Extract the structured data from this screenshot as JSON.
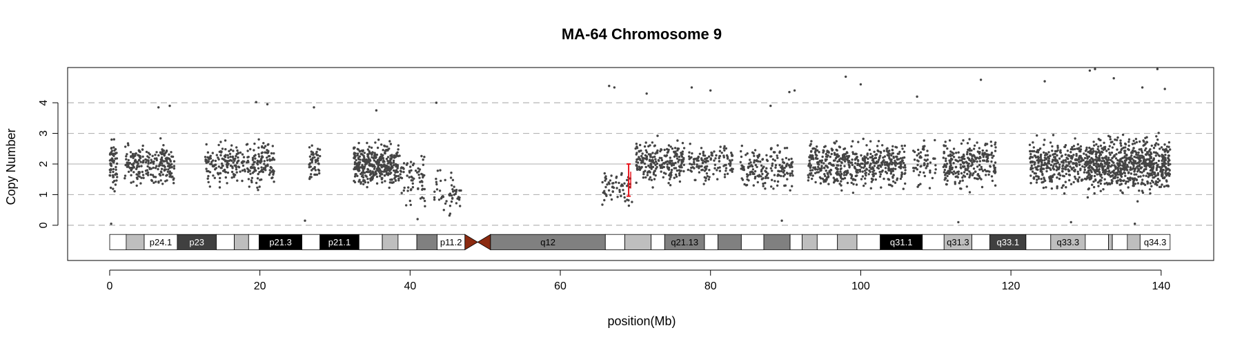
{
  "chart_data": {
    "type": "scatter",
    "title": "MA-64  Chromosome 9",
    "xlabel": "position(Mb)",
    "ylabel": "Copy Number",
    "xlim": [
      -5.6,
      147
    ],
    "ylim": [
      -1.15,
      5.15
    ],
    "x_ticks": [
      0,
      20,
      40,
      60,
      80,
      100,
      120,
      140
    ],
    "y_ticks": [
      0,
      1,
      2,
      3,
      4
    ],
    "gridlines_y": [
      0,
      1,
      2,
      3,
      4
    ],
    "baseline_y": 2,
    "point_color": "#444444",
    "marker": {
      "x": 69.1,
      "y_low": 0.95,
      "y_high": 2.0,
      "color": "#e8141c"
    },
    "point_clusters": [
      {
        "x_start": 0.0,
        "x_end": 1.0,
        "y_center": 2.0,
        "y_spread": 0.7,
        "density": 60
      },
      {
        "x_start": 2.0,
        "x_end": 3.5,
        "y_center": 2.1,
        "y_spread": 0.5,
        "density": 50
      },
      {
        "x_start": 3.5,
        "x_end": 8.6,
        "y_center": 2.0,
        "y_spread": 0.6,
        "density": 180
      },
      {
        "x_start": 12.7,
        "x_end": 18.5,
        "y_center": 2.0,
        "y_spread": 0.6,
        "density": 160
      },
      {
        "x_start": 18.5,
        "x_end": 22.0,
        "y_center": 2.0,
        "y_spread": 0.7,
        "density": 120
      },
      {
        "x_start": 26.5,
        "x_end": 28.0,
        "y_center": 2.0,
        "y_spread": 0.6,
        "density": 50
      },
      {
        "x_start": 32.5,
        "x_end": 38.5,
        "y_center": 2.0,
        "y_spread": 0.6,
        "density": 380
      },
      {
        "x_start": 38.5,
        "x_end": 42.0,
        "y_center": 1.5,
        "y_spread": 0.8,
        "density": 70
      },
      {
        "x_start": 43.0,
        "x_end": 46.8,
        "y_center": 1.1,
        "y_spread": 0.6,
        "density": 50
      },
      {
        "x_start": 65.5,
        "x_end": 69.6,
        "y_center": 1.2,
        "y_spread": 0.5,
        "density": 60
      },
      {
        "x_start": 70.0,
        "x_end": 76.5,
        "y_center": 2.1,
        "y_spread": 0.6,
        "density": 230
      },
      {
        "x_start": 77.0,
        "x_end": 83.0,
        "y_center": 2.0,
        "y_spread": 0.6,
        "density": 130
      },
      {
        "x_start": 84.0,
        "x_end": 91.0,
        "y_center": 1.9,
        "y_spread": 0.7,
        "density": 170
      },
      {
        "x_start": 93.0,
        "x_end": 106.0,
        "y_center": 2.0,
        "y_spread": 0.7,
        "density": 520
      },
      {
        "x_start": 107.0,
        "x_end": 110.0,
        "y_center": 2.0,
        "y_spread": 0.7,
        "density": 60
      },
      {
        "x_start": 111.0,
        "x_end": 118.0,
        "y_center": 2.0,
        "y_spread": 0.7,
        "density": 260
      },
      {
        "x_start": 122.5,
        "x_end": 130.0,
        "y_center": 2.0,
        "y_spread": 0.7,
        "density": 330
      },
      {
        "x_start": 130.0,
        "x_end": 141.2,
        "y_center": 2.0,
        "y_spread": 0.8,
        "density": 760
      }
    ],
    "outlier_points": [
      [
        0.2,
        0.05
      ],
      [
        8.0,
        3.9
      ],
      [
        6.5,
        3.85
      ],
      [
        19.5,
        4.02
      ],
      [
        21.0,
        3.95
      ],
      [
        27.2,
        3.85
      ],
      [
        26.0,
        0.15
      ],
      [
        35.5,
        3.75
      ],
      [
        43.5,
        4.0
      ],
      [
        41.0,
        0.2
      ],
      [
        44.5,
        0.5
      ],
      [
        66.5,
        4.55
      ],
      [
        67.2,
        4.5
      ],
      [
        71.5,
        4.3
      ],
      [
        77.5,
        4.5
      ],
      [
        80.0,
        4.4
      ],
      [
        88.0,
        3.9
      ],
      [
        89.5,
        0.15
      ],
      [
        90.5,
        4.35
      ],
      [
        91.2,
        4.4
      ],
      [
        98.0,
        4.85
      ],
      [
        100.0,
        4.6
      ],
      [
        107.5,
        4.2
      ],
      [
        116.0,
        4.75
      ],
      [
        124.5,
        4.7
      ],
      [
        130.5,
        5.05
      ],
      [
        131.2,
        5.1
      ],
      [
        133.7,
        4.8
      ],
      [
        137.5,
        4.5
      ],
      [
        139.5,
        5.1
      ],
      [
        140.5,
        4.45
      ],
      [
        136.5,
        0.05
      ],
      [
        128.0,
        0.1
      ],
      [
        113.0,
        0.1
      ]
    ],
    "ideogram": {
      "y": -0.55,
      "height": 0.5,
      "centromere": {
        "start": 47.3,
        "mid": 49.0,
        "end": 50.7,
        "color": "#8b2a10"
      },
      "bands": [
        {
          "start": 0.0,
          "end": 2.2,
          "label": "",
          "stain": "#ffffff"
        },
        {
          "start": 2.2,
          "end": 4.6,
          "label": "",
          "stain": "#bebebe"
        },
        {
          "start": 4.6,
          "end": 9.0,
          "label": "p24.1",
          "stain": "#ffffff"
        },
        {
          "start": 9.0,
          "end": 14.2,
          "label": "p23",
          "stain": "#404040"
        },
        {
          "start": 14.2,
          "end": 16.6,
          "label": "",
          "stain": "#ffffff"
        },
        {
          "start": 16.6,
          "end": 18.5,
          "label": "",
          "stain": "#bebebe"
        },
        {
          "start": 18.5,
          "end": 19.9,
          "label": "",
          "stain": "#ffffff"
        },
        {
          "start": 19.9,
          "end": 25.6,
          "label": "p21.3",
          "stain": "#000000"
        },
        {
          "start": 25.6,
          "end": 28.0,
          "label": "",
          "stain": "#ffffff"
        },
        {
          "start": 28.0,
          "end": 33.2,
          "label": "p21.1",
          "stain": "#000000"
        },
        {
          "start": 33.2,
          "end": 36.3,
          "label": "",
          "stain": "#ffffff"
        },
        {
          "start": 36.3,
          "end": 38.4,
          "label": "",
          "stain": "#bebebe"
        },
        {
          "start": 38.4,
          "end": 40.9,
          "label": "",
          "stain": "#ffffff"
        },
        {
          "start": 40.9,
          "end": 43.6,
          "label": "",
          "stain": "#808080"
        },
        {
          "start": 43.6,
          "end": 47.3,
          "label": "p11.2",
          "stain": "#ffffff"
        },
        {
          "start": 50.7,
          "end": 66.0,
          "label": "q12",
          "stain": "#808080"
        },
        {
          "start": 66.0,
          "end": 68.6,
          "label": "",
          "stain": "#ffffff"
        },
        {
          "start": 68.6,
          "end": 72.1,
          "label": "",
          "stain": "#bebebe"
        },
        {
          "start": 72.1,
          "end": 73.9,
          "label": "",
          "stain": "#ffffff"
        },
        {
          "start": 73.9,
          "end": 79.2,
          "label": "q21.13",
          "stain": "#808080"
        },
        {
          "start": 79.2,
          "end": 81.0,
          "label": "",
          "stain": "#ffffff"
        },
        {
          "start": 81.0,
          "end": 84.1,
          "label": "",
          "stain": "#808080"
        },
        {
          "start": 84.1,
          "end": 87.1,
          "label": "",
          "stain": "#ffffff"
        },
        {
          "start": 87.1,
          "end": 90.6,
          "label": "",
          "stain": "#808080"
        },
        {
          "start": 90.6,
          "end": 92.2,
          "label": "",
          "stain": "#ffffff"
        },
        {
          "start": 92.2,
          "end": 94.2,
          "label": "",
          "stain": "#bebebe"
        },
        {
          "start": 94.2,
          "end": 96.9,
          "label": "",
          "stain": "#ffffff"
        },
        {
          "start": 96.9,
          "end": 99.5,
          "label": "",
          "stain": "#bebebe"
        },
        {
          "start": 99.5,
          "end": 102.6,
          "label": "",
          "stain": "#ffffff"
        },
        {
          "start": 102.6,
          "end": 108.2,
          "label": "q31.1",
          "stain": "#000000"
        },
        {
          "start": 108.2,
          "end": 111.1,
          "label": "",
          "stain": "#ffffff"
        },
        {
          "start": 111.1,
          "end": 114.8,
          "label": "q31.3",
          "stain": "#bebebe"
        },
        {
          "start": 114.8,
          "end": 117.2,
          "label": "",
          "stain": "#ffffff"
        },
        {
          "start": 117.2,
          "end": 122.0,
          "label": "q33.1",
          "stain": "#404040"
        },
        {
          "start": 122.0,
          "end": 125.3,
          "label": "",
          "stain": "#ffffff"
        },
        {
          "start": 125.3,
          "end": 129.9,
          "label": "q33.3",
          "stain": "#bebebe"
        },
        {
          "start": 129.9,
          "end": 133.0,
          "label": "",
          "stain": "#ffffff"
        },
        {
          "start": 133.0,
          "end": 133.5,
          "label": "",
          "stain": "#bebebe"
        },
        {
          "start": 133.5,
          "end": 135.5,
          "label": "",
          "stain": "#ffffff"
        },
        {
          "start": 135.5,
          "end": 137.2,
          "label": "",
          "stain": "#bebebe"
        },
        {
          "start": 137.2,
          "end": 141.2,
          "label": "q34.3",
          "stain": "#ffffff"
        }
      ]
    }
  }
}
